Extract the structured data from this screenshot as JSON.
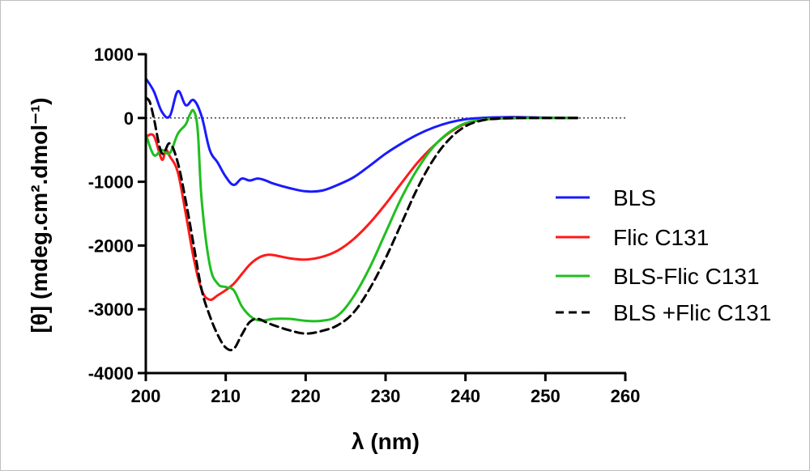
{
  "chart_data": {
    "type": "line",
    "xlabel": "λ (nm)",
    "ylabel": "[θ] (mdeg.cm².dmol⁻¹)",
    "xlim": [
      200,
      260
    ],
    "ylim": [
      -4000,
      1000
    ],
    "xticks": [
      200,
      210,
      220,
      230,
      240,
      250,
      260
    ],
    "yticks": [
      1000,
      0,
      -1000,
      -2000,
      -3000,
      -4000
    ],
    "xtick_labels": [
      "200",
      "210",
      "220",
      "230",
      "240",
      "250",
      "260"
    ],
    "ytick_labels": [
      "1000",
      "0",
      "-1000",
      "-2000",
      "-3000",
      "-4000"
    ],
    "zero_line": "dotted",
    "legend_position": "right",
    "series": [
      {
        "name": "BLS",
        "color": "#1a1aff",
        "dash": "solid",
        "x": [
          200,
          201,
          202,
          203,
          204,
          205,
          206,
          207,
          208,
          209,
          210,
          211,
          212,
          213,
          214,
          215,
          216,
          218,
          220,
          222,
          224,
          226,
          228,
          230,
          232,
          234,
          236,
          238,
          240,
          242,
          244,
          246,
          248,
          250,
          254
        ],
        "y": [
          620,
          420,
          100,
          30,
          420,
          200,
          280,
          20,
          -500,
          -700,
          -920,
          -1050,
          -950,
          -980,
          -950,
          -980,
          -1030,
          -1100,
          -1150,
          -1140,
          -1050,
          -930,
          -750,
          -560,
          -400,
          -260,
          -150,
          -70,
          -20,
          0,
          10,
          15,
          10,
          5,
          0
        ]
      },
      {
        "name": "Flic C131",
        "color": "#ff1a1a",
        "dash": "solid",
        "x": [
          200,
          201,
          202,
          202.5,
          203,
          204,
          205,
          206,
          207,
          208,
          209,
          210,
          211,
          212,
          213,
          214,
          215,
          216,
          218,
          220,
          222,
          224,
          226,
          228,
          230,
          232,
          234,
          236,
          238,
          240,
          242,
          244,
          246,
          250,
          254
        ],
        "y": [
          -300,
          -280,
          -650,
          -500,
          -600,
          -850,
          -1500,
          -2200,
          -2700,
          -2850,
          -2780,
          -2700,
          -2600,
          -2450,
          -2300,
          -2200,
          -2150,
          -2150,
          -2200,
          -2220,
          -2180,
          -2080,
          -1900,
          -1650,
          -1350,
          -1020,
          -700,
          -440,
          -230,
          -90,
          -30,
          -10,
          0,
          0,
          0
        ]
      },
      {
        "name": "BLS-Flic C131",
        "color": "#1fbf1f",
        "dash": "solid",
        "x": [
          200,
          201,
          202,
          203,
          204,
          205,
          205.5,
          206,
          206.5,
          207,
          208,
          209,
          210,
          211,
          212,
          213,
          214,
          215,
          216,
          218,
          220,
          222,
          224,
          226,
          228,
          230,
          232,
          234,
          236,
          238,
          240,
          242,
          244,
          246,
          248,
          250,
          254
        ],
        "y": [
          -250,
          -580,
          -500,
          -550,
          -250,
          -100,
          50,
          110,
          -200,
          -1300,
          -2300,
          -2600,
          -2650,
          -2700,
          -2950,
          -3100,
          -3170,
          -3170,
          -3150,
          -3150,
          -3180,
          -3180,
          -3100,
          -2800,
          -2350,
          -1800,
          -1250,
          -800,
          -450,
          -220,
          -80,
          -30,
          -10,
          -5,
          0,
          0,
          0
        ]
      },
      {
        "name": "BLS +Flic C131",
        "color": "#000000",
        "dash": "dashed",
        "x": [
          200,
          200.5,
          201,
          202,
          203,
          204,
          205,
          206,
          207,
          208,
          209,
          210,
          211,
          212,
          213,
          214,
          215,
          216,
          218,
          220,
          222,
          224,
          226,
          228,
          230,
          232,
          234,
          236,
          238,
          240,
          242,
          244,
          246,
          248,
          250,
          254
        ],
        "y": [
          320,
          250,
          0,
          -550,
          -400,
          -700,
          -1300,
          -2000,
          -2700,
          -3100,
          -3400,
          -3600,
          -3620,
          -3400,
          -3200,
          -3150,
          -3200,
          -3250,
          -3330,
          -3380,
          -3340,
          -3250,
          -3050,
          -2680,
          -2200,
          -1650,
          -1100,
          -650,
          -330,
          -130,
          -40,
          -10,
          0,
          0,
          0,
          0
        ]
      }
    ]
  }
}
